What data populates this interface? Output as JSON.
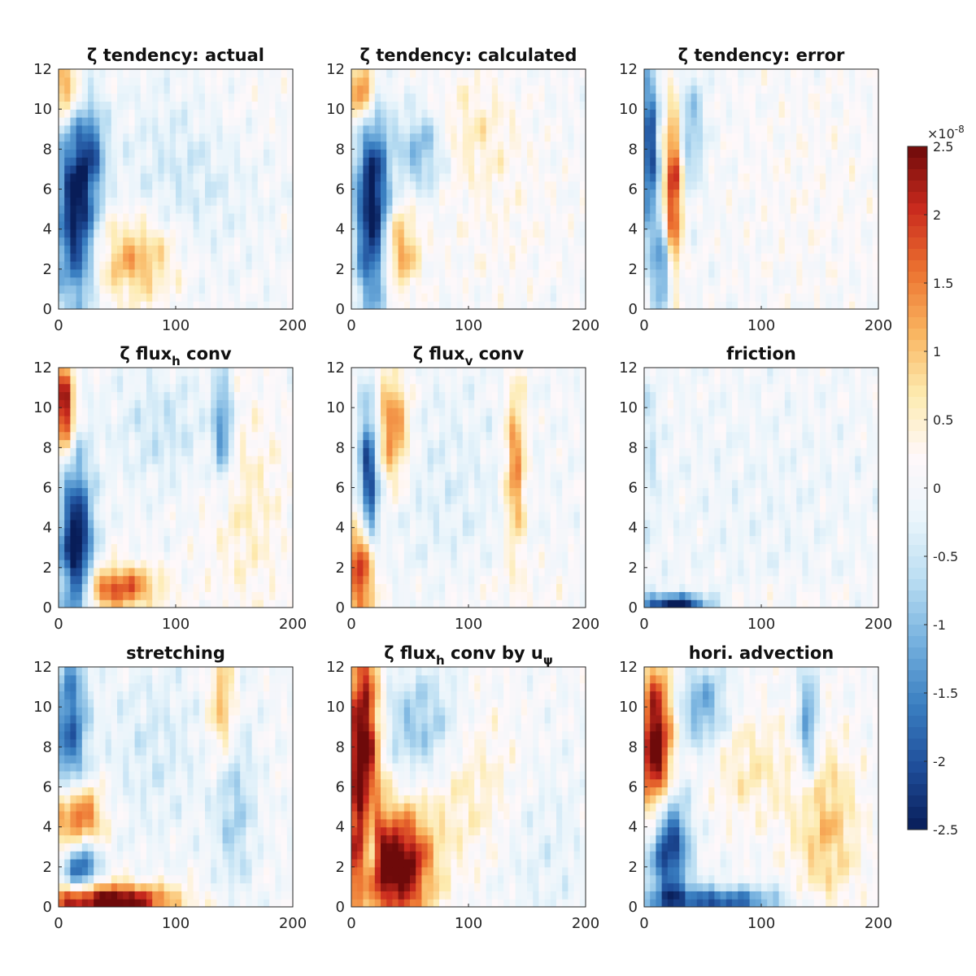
{
  "colors": {
    "colormap": [
      "#081D58",
      "#1F4E9A",
      "#3A7FC1",
      "#74B0DE",
      "#B9DDF2",
      "#EAF5FB",
      "#FFF8FA",
      "#FDEBB0",
      "#F9B560",
      "#EC7230",
      "#C92A1E",
      "#6E0A0A"
    ]
  },
  "figure": {
    "colorbar": {
      "multiplier": "×10",
      "exponent": "-8",
      "range": [
        -2.5,
        2.5
      ],
      "ticks": [
        "2.5",
        "2",
        "1.5",
        "1",
        "0.5",
        "0",
        "-0.5",
        "-1",
        "-1.5",
        "-2",
        "-2.5"
      ]
    }
  },
  "chart_data": [
    {
      "type": "heatmap",
      "title": "ζ tendency: actual",
      "xlim": [
        0,
        200
      ],
      "ylim": [
        0,
        12
      ],
      "xticks": [
        "0",
        "100",
        "200"
      ],
      "yticks": [
        "0",
        "2",
        "4",
        "6",
        "8",
        "10",
        "12"
      ],
      "features": [
        {
          "x": 15,
          "y": 5,
          "sx": 12,
          "sy": 3.5,
          "v": -2.6
        },
        {
          "x": 5,
          "y": 11,
          "sx": 10,
          "sy": 1.2,
          "v": 1.6
        },
        {
          "x": 30,
          "y": 8,
          "sx": 8,
          "sy": 1.5,
          "v": -1.0
        },
        {
          "x": 65,
          "y": 2.5,
          "sx": 25,
          "sy": 1.5,
          "v": 1.2
        },
        {
          "x": 110,
          "y": 7,
          "sx": 40,
          "sy": 3,
          "v": -0.45
        },
        {
          "x": 150,
          "y": 10,
          "sx": 30,
          "sy": 2,
          "v": 0.2
        }
      ]
    },
    {
      "type": "heatmap",
      "title": "ζ tendency: calculated",
      "xlim": [
        0,
        200
      ],
      "ylim": [
        0,
        12
      ],
      "xticks": [
        "0",
        "100",
        "200"
      ],
      "yticks": [
        "0",
        "2",
        "4",
        "6",
        "8",
        "10",
        "12"
      ],
      "features": [
        {
          "x": 18,
          "y": 5,
          "sx": 10,
          "sy": 3.5,
          "v": -2.8
        },
        {
          "x": 10,
          "y": 11,
          "sx": 8,
          "sy": 1.2,
          "v": 1.8
        },
        {
          "x": 40,
          "y": 3,
          "sx": 12,
          "sy": 1.5,
          "v": 1.3
        },
        {
          "x": 60,
          "y": 8,
          "sx": 15,
          "sy": 1.5,
          "v": -1.2
        },
        {
          "x": 100,
          "y": 9,
          "sx": 30,
          "sy": 2,
          "v": 0.5
        },
        {
          "x": 130,
          "y": 4,
          "sx": 40,
          "sy": 3,
          "v": 0.2
        }
      ]
    },
    {
      "type": "heatmap",
      "title": "ζ tendency: error",
      "xlim": [
        0,
        200
      ],
      "ylim": [
        0,
        12
      ],
      "xticks": [
        "0",
        "100",
        "200"
      ],
      "yticks": [
        "0",
        "2",
        "4",
        "6",
        "8",
        "10",
        "12"
      ],
      "features": [
        {
          "x": 5,
          "y": 8,
          "sx": 5,
          "sy": 3,
          "v": -2.2
        },
        {
          "x": 25,
          "y": 6,
          "sx": 5,
          "sy": 3,
          "v": 2.2
        },
        {
          "x": 15,
          "y": 2,
          "sx": 6,
          "sy": 1.5,
          "v": -1.5
        },
        {
          "x": 40,
          "y": 9,
          "sx": 8,
          "sy": 2,
          "v": -1.0
        },
        {
          "x": 140,
          "y": 6,
          "sx": 50,
          "sy": 5,
          "v": 0.15
        }
      ]
    },
    {
      "type": "heatmap",
      "title": "ζ flux_h conv",
      "xlim": [
        0,
        200
      ],
      "ylim": [
        0,
        12
      ],
      "xticks": [
        "0",
        "100",
        "200"
      ],
      "yticks": [
        "0",
        "2",
        "4",
        "6",
        "8",
        "10",
        "12"
      ],
      "features": [
        {
          "x": 15,
          "y": 3,
          "sx": 10,
          "sy": 3,
          "v": -2.8
        },
        {
          "x": 5,
          "y": 10,
          "sx": 6,
          "sy": 1.5,
          "v": 2.6
        },
        {
          "x": 50,
          "y": 1,
          "sx": 25,
          "sy": 0.8,
          "v": 1.8
        },
        {
          "x": 140,
          "y": 9,
          "sx": 6,
          "sy": 2,
          "v": -1.5
        },
        {
          "x": 160,
          "y": 5,
          "sx": 25,
          "sy": 4,
          "v": 0.5
        },
        {
          "x": 90,
          "y": 9,
          "sx": 30,
          "sy": 2,
          "v": -0.5
        }
      ]
    },
    {
      "type": "heatmap",
      "title": "ζ flux_v conv",
      "xlim": [
        0,
        200
      ],
      "ylim": [
        0,
        12
      ],
      "xticks": [
        "0",
        "100",
        "200"
      ],
      "yticks": [
        "0",
        "2",
        "4",
        "6",
        "8",
        "10",
        "12"
      ],
      "features": [
        {
          "x": 10,
          "y": 2,
          "sx": 8,
          "sy": 2,
          "v": 2.6
        },
        {
          "x": 15,
          "y": 6,
          "sx": 6,
          "sy": 3,
          "v": -2.4
        },
        {
          "x": 35,
          "y": 9,
          "sx": 10,
          "sy": 2,
          "v": 1.6
        },
        {
          "x": 140,
          "y": 7,
          "sx": 6,
          "sy": 3,
          "v": 1.5
        },
        {
          "x": 80,
          "y": 6,
          "sx": 40,
          "sy": 4,
          "v": -0.3
        },
        {
          "x": 130,
          "y": 1,
          "sx": 50,
          "sy": 1,
          "v": 0.2
        }
      ]
    },
    {
      "type": "heatmap",
      "title": "friction",
      "xlim": [
        0,
        200
      ],
      "ylim": [
        0,
        12
      ],
      "xticks": [
        "0",
        "100",
        "200"
      ],
      "yticks": [
        "0",
        "2",
        "4",
        "6",
        "8",
        "10",
        "12"
      ],
      "features": [
        {
          "x": 25,
          "y": 0.2,
          "sx": 20,
          "sy": 0.35,
          "v": -2.6
        },
        {
          "x": 5,
          "y": 8,
          "sx": 5,
          "sy": 3,
          "v": -0.5
        },
        {
          "x": 100,
          "y": 5,
          "sx": 60,
          "sy": 4,
          "v": -0.15
        },
        {
          "x": 120,
          "y": 0.6,
          "sx": 40,
          "sy": 0.5,
          "v": 0.2
        }
      ]
    },
    {
      "type": "heatmap",
      "title": "stretching",
      "xlim": [
        0,
        200
      ],
      "ylim": [
        0,
        12
      ],
      "xticks": [
        "0",
        "100",
        "200"
      ],
      "yticks": [
        "0",
        "2",
        "4",
        "6",
        "8",
        "10",
        "12"
      ],
      "features": [
        {
          "x": 40,
          "y": 0.3,
          "sx": 40,
          "sy": 0.6,
          "v": 3.0
        },
        {
          "x": 15,
          "y": 4.5,
          "sx": 15,
          "sy": 1.2,
          "v": 2.2
        },
        {
          "x": 20,
          "y": 2,
          "sx": 10,
          "sy": 1,
          "v": -2.0
        },
        {
          "x": 10,
          "y": 9,
          "sx": 10,
          "sy": 3,
          "v": -1.8
        },
        {
          "x": 140,
          "y": 10,
          "sx": 8,
          "sy": 2,
          "v": 1.2
        },
        {
          "x": 150,
          "y": 5,
          "sx": 12,
          "sy": 3,
          "v": -0.8
        },
        {
          "x": 80,
          "y": 8,
          "sx": 30,
          "sy": 3,
          "v": -0.4
        }
      ]
    },
    {
      "type": "heatmap",
      "title": "ζ flux_h conv by u_ψ",
      "xlim": [
        0,
        200
      ],
      "ylim": [
        0,
        12
      ],
      "xticks": [
        "0",
        "100",
        "200"
      ],
      "yticks": [
        "0",
        "2",
        "4",
        "6",
        "8",
        "10",
        "12"
      ],
      "features": [
        {
          "x": 10,
          "y": 7,
          "sx": 10,
          "sy": 5,
          "v": 3.0
        },
        {
          "x": 40,
          "y": 2,
          "sx": 20,
          "sy": 2,
          "v": 2.8
        },
        {
          "x": 15,
          "y": 3,
          "sx": 5,
          "sy": 2,
          "v": -2.2
        },
        {
          "x": 60,
          "y": 9,
          "sx": 25,
          "sy": 2,
          "v": -1.0
        },
        {
          "x": 100,
          "y": 6,
          "sx": 30,
          "sy": 3,
          "v": 0.6
        },
        {
          "x": 160,
          "y": 3,
          "sx": 30,
          "sy": 3,
          "v": -0.3
        }
      ]
    },
    {
      "type": "heatmap",
      "title": "hori. advection",
      "xlim": [
        0,
        200
      ],
      "ylim": [
        0,
        12
      ],
      "xticks": [
        "0",
        "100",
        "200"
      ],
      "yticks": [
        "0",
        "2",
        "4",
        "6",
        "8",
        "10",
        "12"
      ],
      "features": [
        {
          "x": 10,
          "y": 8,
          "sx": 10,
          "sy": 3,
          "v": 2.8
        },
        {
          "x": 20,
          "y": 3,
          "sx": 12,
          "sy": 2,
          "v": -2.6
        },
        {
          "x": 60,
          "y": 0.3,
          "sx": 40,
          "sy": 0.5,
          "v": -2.0
        },
        {
          "x": 50,
          "y": 10,
          "sx": 15,
          "sy": 1.5,
          "v": -1.2
        },
        {
          "x": 140,
          "y": 9,
          "sx": 6,
          "sy": 2,
          "v": -1.5
        },
        {
          "x": 155,
          "y": 4,
          "sx": 20,
          "sy": 3,
          "v": 1.0
        },
        {
          "x": 90,
          "y": 7,
          "sx": 25,
          "sy": 2,
          "v": 0.6
        }
      ]
    }
  ]
}
